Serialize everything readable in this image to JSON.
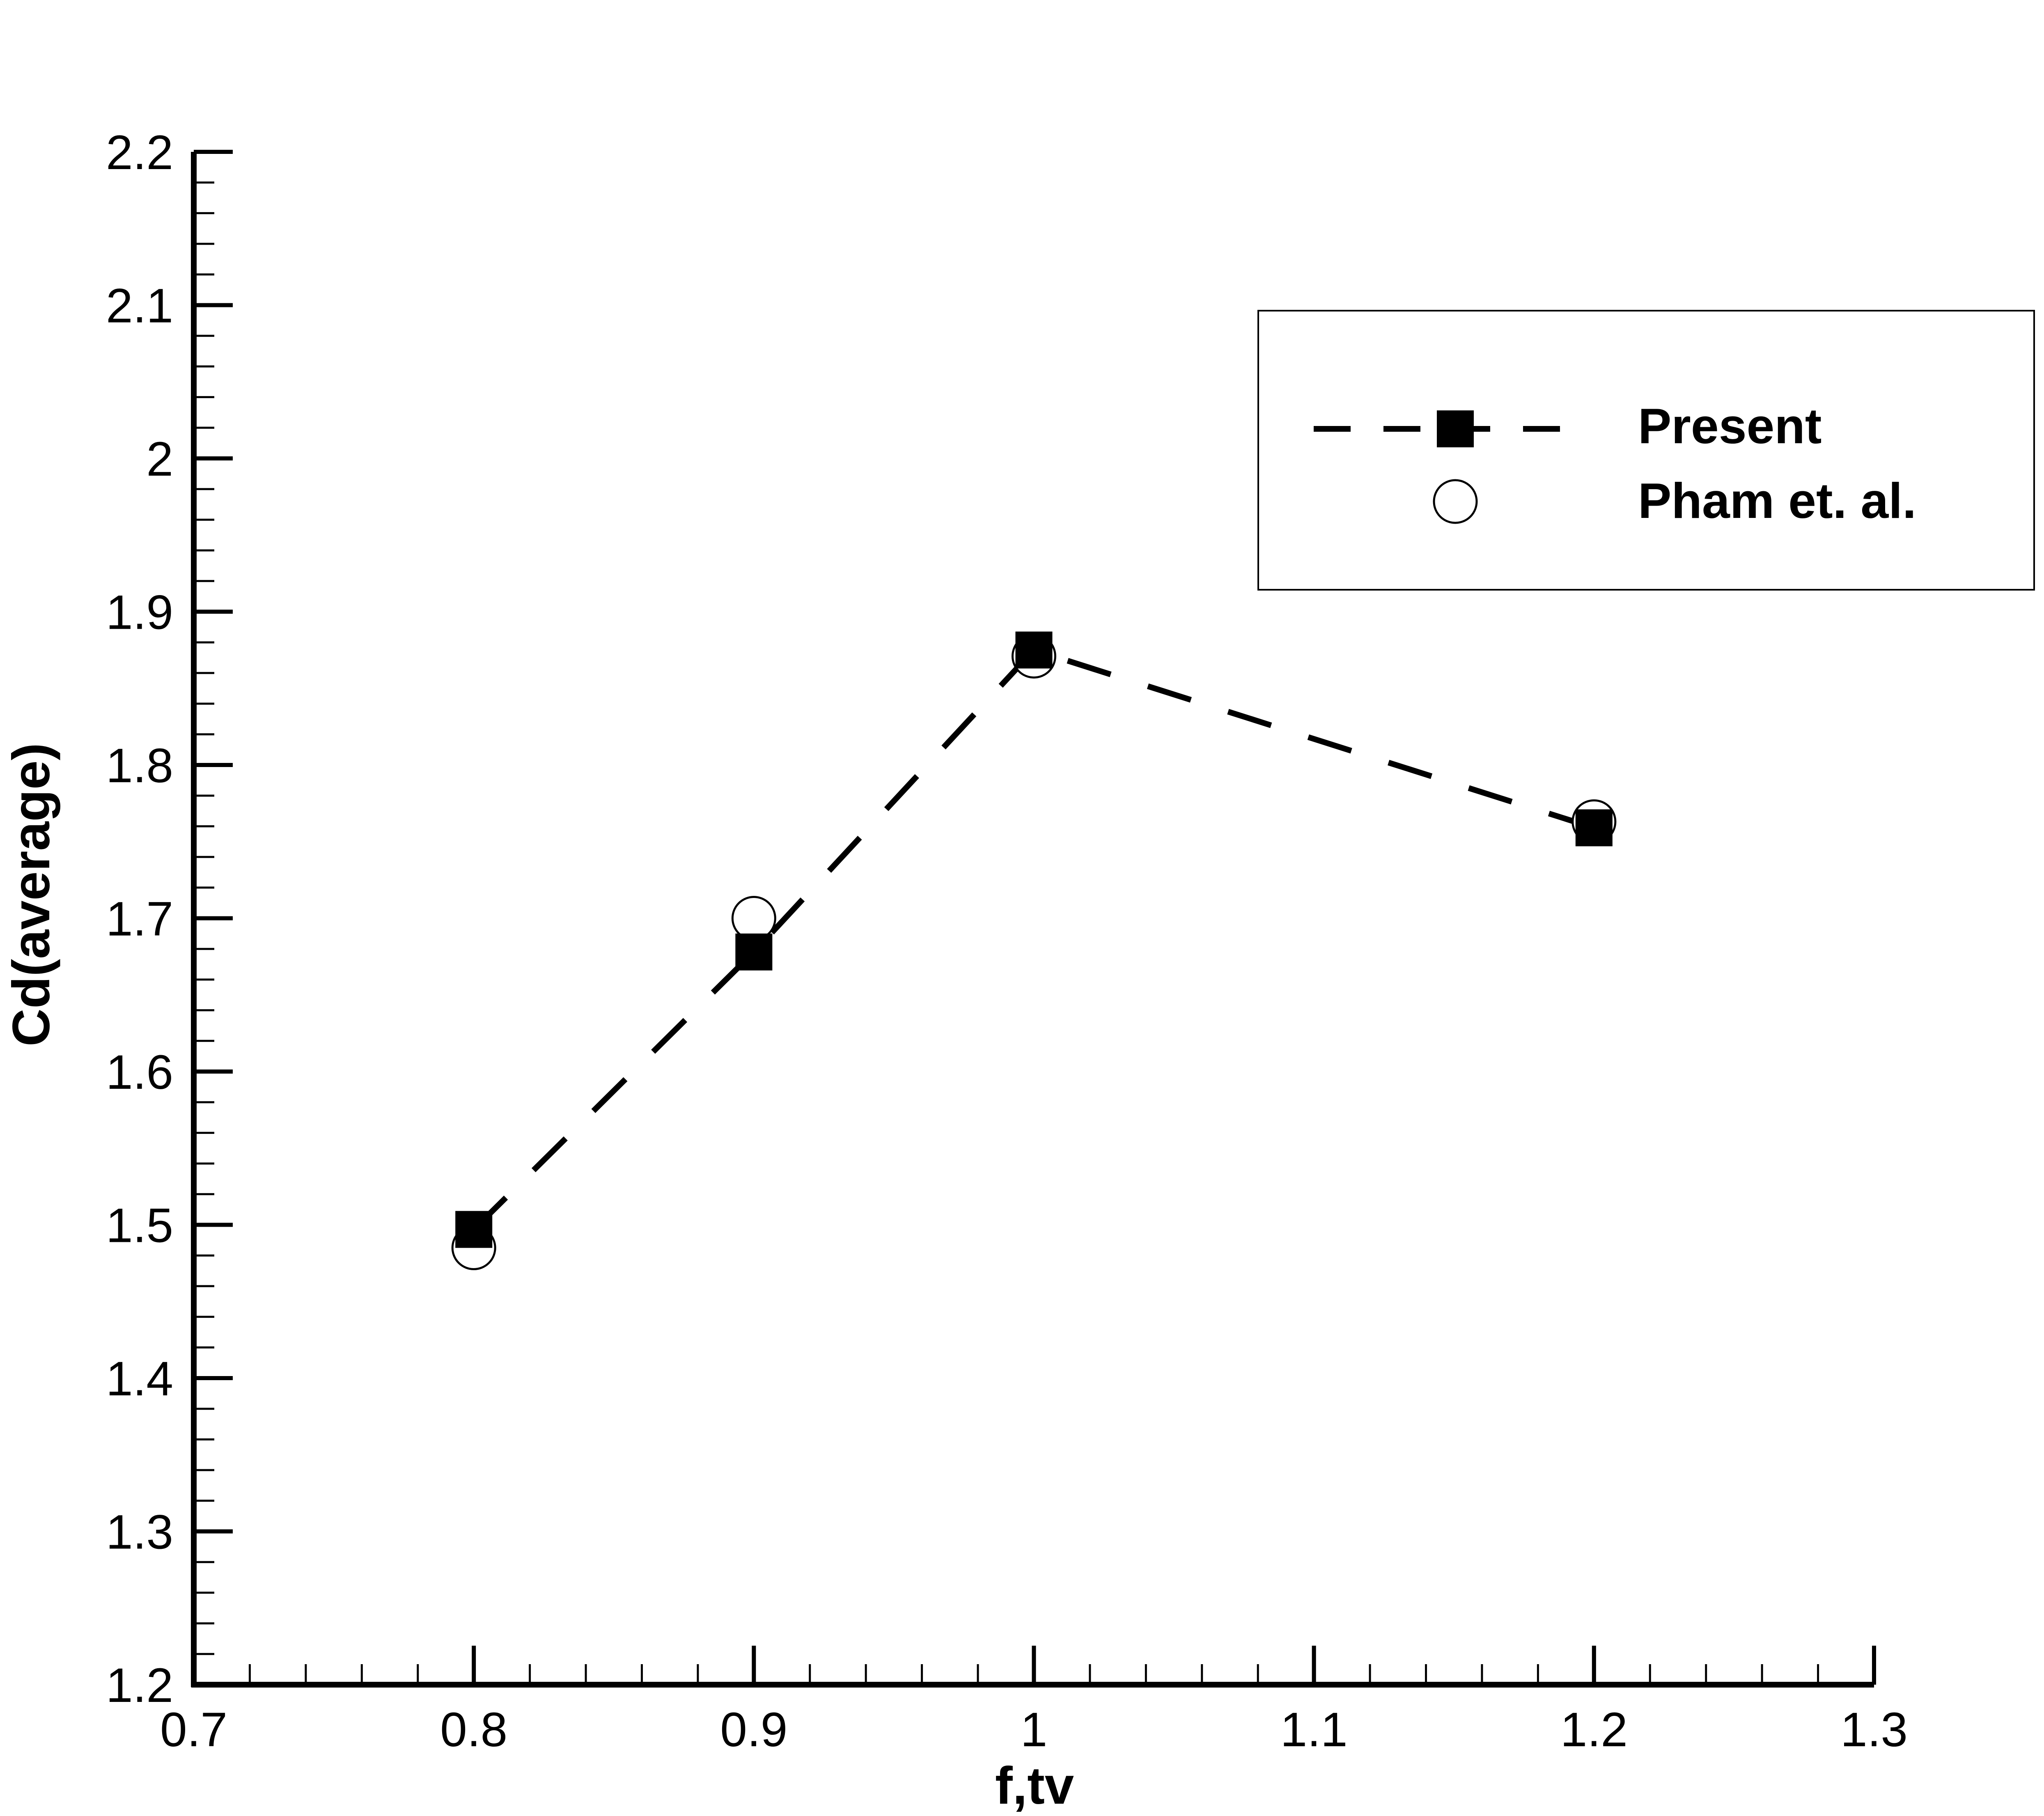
{
  "chart_data": {
    "type": "line",
    "xlabel": "f,tv",
    "ylabel": "Cd(average)",
    "xlim": [
      0.7,
      1.3
    ],
    "ylim": [
      1.2,
      2.2
    ],
    "x_ticks": [
      "0.7",
      "0.8",
      "0.9",
      "1",
      "1.1",
      "1.2",
      "1.3"
    ],
    "y_ticks": [
      "1.2",
      "1.3",
      "1.4",
      "1.5",
      "1.6",
      "1.7",
      "1.8",
      "1.9",
      "2",
      "2.1",
      "2.2"
    ],
    "grid": false,
    "legend_position": "top-right",
    "series": [
      {
        "name": "Present",
        "style": "dashed line with filled square markers",
        "color": "#000000",
        "x": [
          0.8,
          0.9,
          1.0,
          1.2
        ],
        "y": [
          1.497,
          1.678,
          1.875,
          1.759
        ]
      },
      {
        "name": "Pham et. al.",
        "style": "open circle markers",
        "color": "#000000",
        "x": [
          0.8,
          0.9,
          1.0,
          1.2
        ],
        "y": [
          1.485,
          1.7,
          1.871,
          1.763
        ]
      }
    ]
  }
}
